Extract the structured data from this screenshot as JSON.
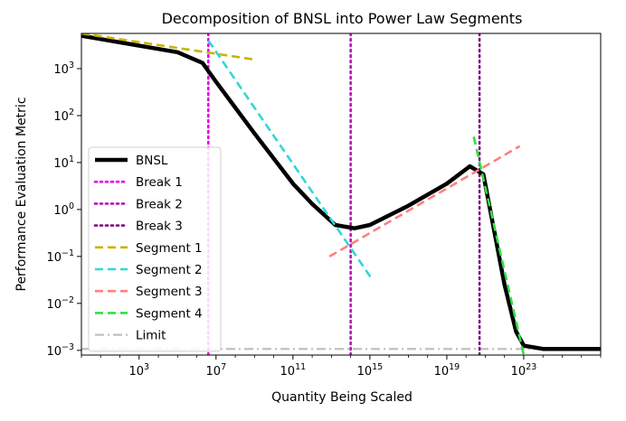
{
  "chart_data": {
    "type": "line",
    "title": "Decomposition of BNSL into Power Law Segments",
    "xlabel": "Quantity Being Scaled",
    "ylabel": "Performance Evaluation Metric",
    "xscale": "log10",
    "yscale": "log10",
    "xlim_exp": [
      0,
      27
    ],
    "ylim_exp": [
      -3.1,
      3.75
    ],
    "xticks": [
      {
        "exp": 3,
        "base": "10",
        "sup": "3"
      },
      {
        "exp": 7,
        "base": "10",
        "sup": "7"
      },
      {
        "exp": 11,
        "base": "10",
        "sup": "11"
      },
      {
        "exp": 15,
        "base": "10",
        "sup": "15"
      },
      {
        "exp": 19,
        "base": "10",
        "sup": "19"
      },
      {
        "exp": 23,
        "base": "10",
        "sup": "23"
      }
    ],
    "yticks": [
      {
        "exp": 3,
        "base": "10",
        "sup": "3"
      },
      {
        "exp": 2,
        "base": "10",
        "sup": "2"
      },
      {
        "exp": 1,
        "base": "10",
        "sup": "1"
      },
      {
        "exp": 0,
        "base": "10",
        "sup": "0"
      },
      {
        "exp": -1,
        "base": "10",
        "sup": "−1"
      },
      {
        "exp": -2,
        "base": "10",
        "sup": "−2"
      },
      {
        "exp": -3,
        "base": "10",
        "sup": "−3"
      }
    ],
    "legend_position": "lower left",
    "series": [
      {
        "name": "BNSL",
        "color": "#000000",
        "style": "solid",
        "points_log10": [
          [
            0,
            3.7
          ],
          [
            4,
            3.42
          ],
          [
            5,
            3.35
          ],
          [
            6.3,
            3.12
          ],
          [
            7,
            2.72
          ],
          [
            9,
            1.62
          ],
          [
            11,
            0.55
          ],
          [
            12,
            0.12
          ],
          [
            13.2,
            -0.33
          ],
          [
            14.2,
            -0.4
          ],
          [
            15,
            -0.33
          ],
          [
            17,
            0.08
          ],
          [
            19,
            0.55
          ],
          [
            20.2,
            0.92
          ],
          [
            20.9,
            0.75
          ],
          [
            22,
            -1.6
          ],
          [
            22.6,
            -2.6
          ],
          [
            23,
            -2.9
          ],
          [
            24,
            -2.97
          ],
          [
            27,
            -2.97
          ]
        ]
      },
      {
        "name": "Break 1",
        "color": "#e600e6",
        "style": "dotted",
        "break_log10": 6.6
      },
      {
        "name": "Break 2",
        "color": "#b314b3",
        "style": "dotted",
        "break_log10": 14.0
      },
      {
        "name": "Break 3",
        "color": "#7f0f7f",
        "style": "dotted",
        "break_log10": 20.7
      },
      {
        "name": "Segment 1",
        "color": "#c8b400",
        "style": "dashed",
        "points_log10": [
          [
            0,
            3.75
          ],
          [
            8.9,
            3.2
          ]
        ]
      },
      {
        "name": "Segment 2",
        "color": "#33d6d6",
        "style": "dashed",
        "points_log10": [
          [
            6.6,
            3.6
          ],
          [
            15.05,
            -1.45
          ]
        ]
      },
      {
        "name": "Segment 3",
        "color": "#ff7f7f",
        "style": "dashed",
        "points_log10": [
          [
            12.9,
            -1.0
          ],
          [
            22.8,
            1.35
          ]
        ]
      },
      {
        "name": "Segment 4",
        "color": "#33dd44",
        "style": "dashed",
        "points_log10": [
          [
            20.4,
            1.55
          ],
          [
            23.0,
            -3.1
          ]
        ]
      },
      {
        "name": "Limit",
        "color": "#c0c0c0",
        "style": "dashdot",
        "y_log10": -2.97
      }
    ]
  }
}
